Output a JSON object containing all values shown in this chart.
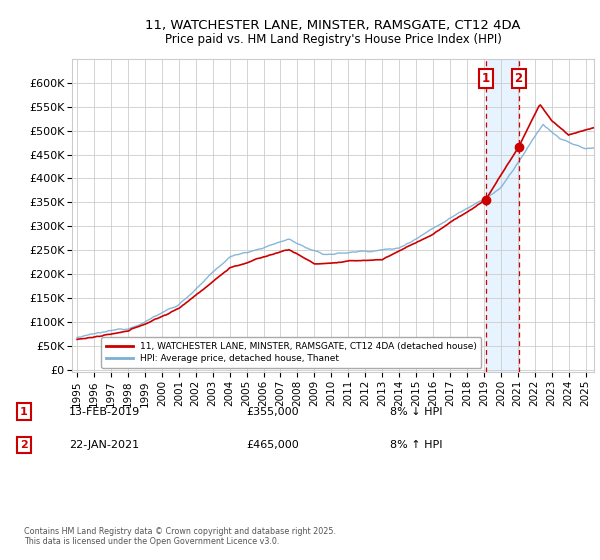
{
  "title": "11, WATCHESTER LANE, MINSTER, RAMSGATE, CT12 4DA",
  "subtitle": "Price paid vs. HM Land Registry's House Price Index (HPI)",
  "ylabel_ticks": [
    "£0",
    "£50K",
    "£100K",
    "£150K",
    "£200K",
    "£250K",
    "£300K",
    "£350K",
    "£400K",
    "£450K",
    "£500K",
    "£550K",
    "£600K"
  ],
  "ytick_values": [
    0,
    50000,
    100000,
    150000,
    200000,
    250000,
    300000,
    350000,
    400000,
    450000,
    500000,
    550000,
    600000
  ],
  "xlim_start": 1994.7,
  "xlim_end": 2025.5,
  "ylim_min": -5000,
  "ylim_max": 650000,
  "sale1_x": 2019.1,
  "sale1_price": 355000,
  "sale2_x": 2021.05,
  "sale2_price": 465000,
  "legend_line1": "11, WATCHESTER LANE, MINSTER, RAMSGATE, CT12 4DA (detached house)",
  "legend_line2": "HPI: Average price, detached house, Thanet",
  "annotation1_date": "13-FEB-2019",
  "annotation1_price": "£355,000",
  "annotation1_note": "8% ↓ HPI",
  "annotation2_date": "22-JAN-2021",
  "annotation2_price": "£465,000",
  "annotation2_note": "8% ↑ HPI",
  "copyright_text": "Contains HM Land Registry data © Crown copyright and database right 2025.\nThis data is licensed under the Open Government Licence v3.0.",
  "line_color_red": "#cc0000",
  "line_color_blue": "#7ab0d4",
  "background_color": "#ffffff",
  "grid_color": "#cccccc",
  "shaded_region_color": "#ddeeff"
}
